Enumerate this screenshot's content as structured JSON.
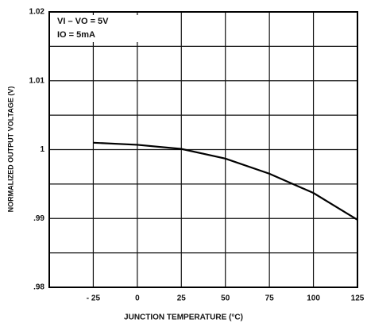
{
  "chart_data": {
    "type": "line",
    "x_label": "JUNCTION TEMPERATURE (°C)",
    "y_label": "NORMALIZED OUTPUT VOLTAGE (V)",
    "annotations": [
      "VI – VO = 5V",
      "IO = 5mA"
    ],
    "x": [
      -25,
      0,
      25,
      50,
      75,
      100,
      125
    ],
    "series": [
      {
        "color": "#000000",
        "values": [
          1.001,
          1.0007,
          1.0001,
          0.9987,
          0.9965,
          0.9937,
          0.9898
        ]
      }
    ],
    "xlim": [
      -50,
      125
    ],
    "xticks": [
      {
        "value": -25,
        "label": "- 25"
      },
      0,
      25,
      50,
      75,
      100,
      125
    ],
    "ylim": [
      0.98,
      1.02
    ],
    "yticks": [
      {
        "value": 0.98,
        "label": ".98"
      },
      {
        "value": 0.99,
        "label": ".99"
      },
      1,
      1.01,
      1.02
    ],
    "ygrid": [
      0.985,
      0.995,
      1.005,
      1.015
    ],
    "grid": true
  }
}
